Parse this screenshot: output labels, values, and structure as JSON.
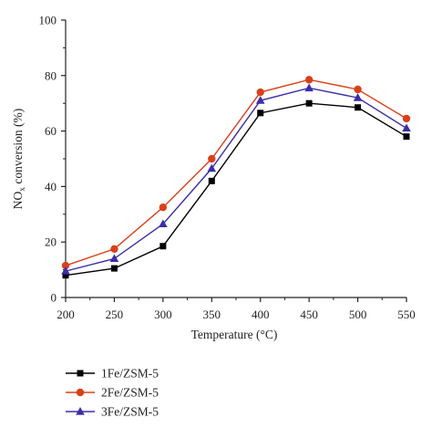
{
  "chart_data": {
    "type": "line",
    "x": [
      200,
      250,
      300,
      350,
      400,
      450,
      500,
      550
    ],
    "xlim": [
      200,
      550
    ],
    "ylim": [
      0,
      100
    ],
    "xticks": [
      200,
      250,
      300,
      350,
      400,
      450,
      500,
      550
    ],
    "yticks": [
      0,
      20,
      40,
      60,
      80,
      100
    ],
    "xlabel": "Temperature (°C)",
    "ylabel_main": "NO",
    "ylabel_sub": "x",
    "ylabel_rest": " conversion (%)",
    "grid": false,
    "legend_position": "bottom-left",
    "series": [
      {
        "name": "1Fe/ZSM-5",
        "color": "#000000",
        "marker": "square",
        "values": [
          8.0,
          10.5,
          18.5,
          42.0,
          66.5,
          70.0,
          68.5,
          58.0
        ]
      },
      {
        "name": "2Fe/ZSM-5",
        "color": "#d9401a",
        "marker": "circle",
        "values": [
          11.5,
          17.5,
          32.5,
          50.0,
          74.0,
          78.5,
          75.0,
          64.5
        ]
      },
      {
        "name": "3Fe/ZSM-5",
        "color": "#3a2ea8",
        "marker": "triangle",
        "values": [
          9.5,
          14.0,
          26.5,
          46.5,
          71.0,
          75.5,
          72.0,
          61.0
        ]
      }
    ]
  }
}
